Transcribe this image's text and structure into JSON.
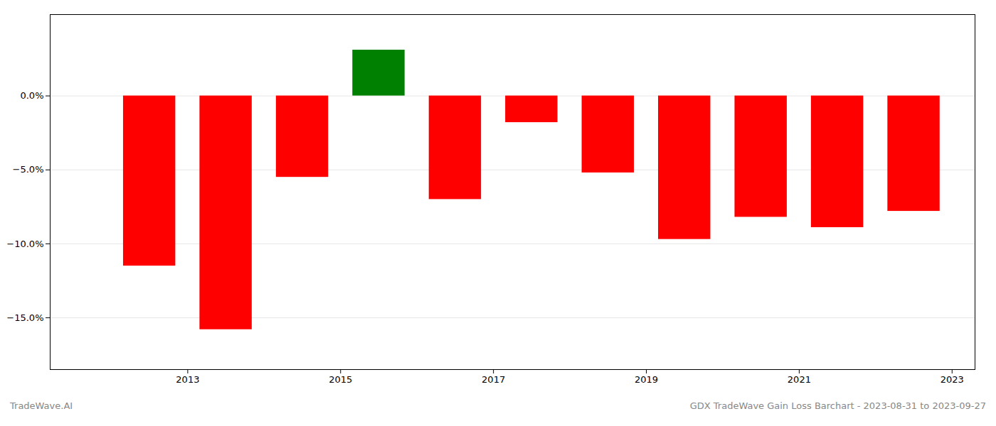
{
  "chart_data": {
    "type": "bar",
    "x": [
      2012,
      2013,
      2014,
      2015,
      2016,
      2017,
      2018,
      2019,
      2020,
      2021,
      2022
    ],
    "values": [
      -11.5,
      -15.8,
      -5.5,
      3.1,
      -7.0,
      -1.8,
      -5.2,
      -9.7,
      -8.2,
      -8.9,
      -7.8
    ],
    "colors": [
      "#ff0000",
      "#ff0000",
      "#ff0000",
      "#008000",
      "#ff0000",
      "#ff0000",
      "#ff0000",
      "#ff0000",
      "#ff0000",
      "#ff0000",
      "#ff0000"
    ],
    "xlim": [
      2011.2,
      2023.3
    ],
    "xticks": [
      2013,
      2015,
      2017,
      2019,
      2021,
      2023
    ],
    "ylim": [
      -18.5,
      5.5
    ],
    "yticks": [
      {
        "value": 0.0,
        "label": "0.0%"
      },
      {
        "value": -5.0,
        "label": "−5.0%"
      },
      {
        "value": -10.0,
        "label": "−10.0%"
      },
      {
        "value": -15.0,
        "label": "−15.0%"
      }
    ],
    "grid": true,
    "annotations": [
      "TradeWave.AI",
      "GDX TradeWave Gain Loss Barchart - 2023-08-31 to 2023-09-27"
    ]
  }
}
